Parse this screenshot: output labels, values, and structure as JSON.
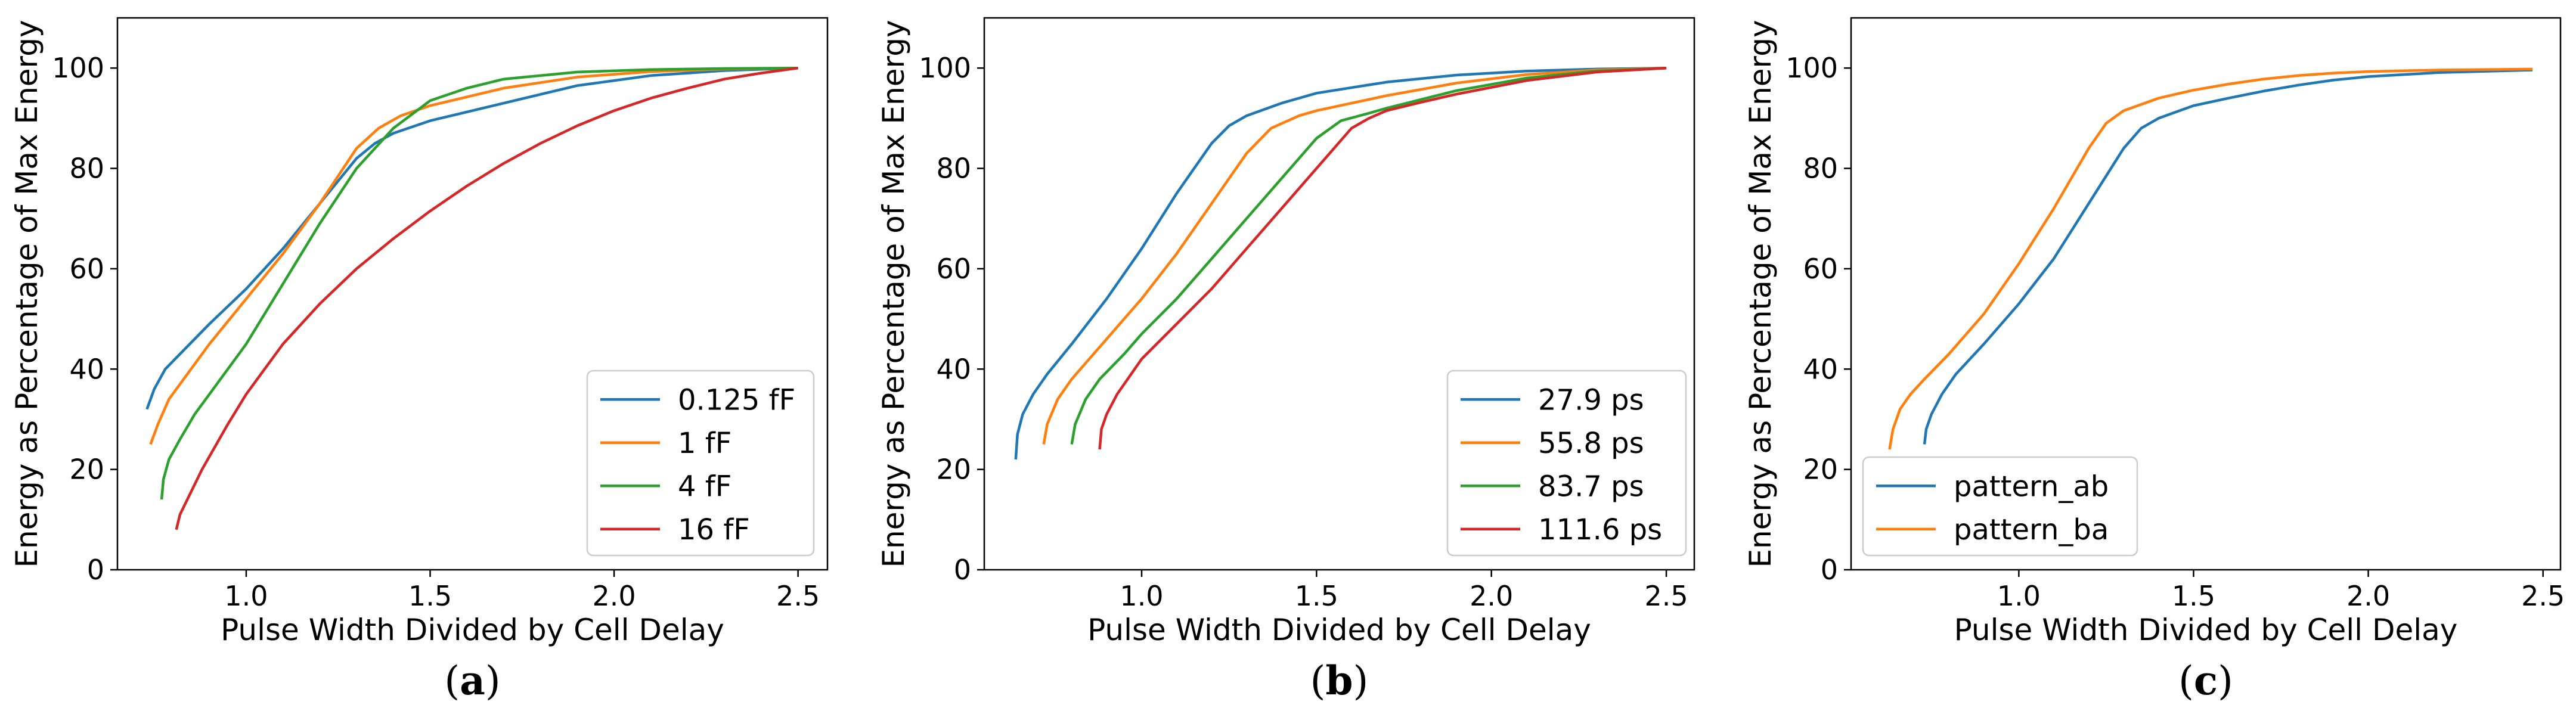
{
  "figure": {
    "panel_labels": [
      "(a)",
      "(b)",
      "(c)"
    ]
  },
  "chart_data": [
    {
      "type": "line",
      "panel_label": "(a)",
      "xlabel": "Pulse Width Divided by Cell Delay",
      "ylabel": "Energy as Percentage of Max Energy",
      "xlim": [
        0.65,
        2.58
      ],
      "ylim": [
        0,
        110
      ],
      "xticks": [
        1.0,
        1.5,
        2.0,
        2.5
      ],
      "xtick_labels": [
        "1.0",
        "1.5",
        "2.0",
        "2.5"
      ],
      "yticks": [
        0,
        20,
        40,
        60,
        80,
        100
      ],
      "ytick_labels": [
        "0",
        "20",
        "40",
        "60",
        "80",
        "100"
      ],
      "legend_position": "lower-right",
      "grid": false,
      "series": [
        {
          "name": "0.125 fF",
          "color": "#1f77b4",
          "x": [
            0.73,
            0.75,
            0.78,
            0.82,
            0.9,
            1.0,
            1.1,
            1.2,
            1.3,
            1.35,
            1.4,
            1.5,
            1.7,
            1.9,
            2.1,
            2.3,
            2.5
          ],
          "y": [
            32,
            36,
            40,
            43,
            49,
            56,
            64,
            73,
            82,
            85,
            87,
            89.5,
            93,
            96.5,
            98.5,
            99.5,
            100
          ]
        },
        {
          "name": "1 fF",
          "color": "#ff7f0e",
          "x": [
            0.74,
            0.76,
            0.79,
            0.83,
            0.9,
            1.0,
            1.1,
            1.2,
            1.3,
            1.36,
            1.42,
            1.5,
            1.7,
            1.9,
            2.1,
            2.3,
            2.5
          ],
          "y": [
            25,
            29,
            34,
            38,
            45,
            54,
            63,
            73,
            84,
            88,
            90.5,
            92.5,
            96,
            98.2,
            99.3,
            99.8,
            100
          ]
        },
        {
          "name": "4 fF",
          "color": "#2ca02c",
          "x": [
            0.77,
            0.775,
            0.79,
            0.82,
            0.86,
            0.9,
            1.0,
            1.1,
            1.2,
            1.3,
            1.4,
            1.5,
            1.6,
            1.7,
            1.9,
            2.1,
            2.3,
            2.5
          ],
          "y": [
            14,
            18,
            22,
            26,
            31,
            35,
            45,
            57,
            69,
            80,
            88,
            93.5,
            96,
            97.8,
            99.2,
            99.7,
            99.9,
            100
          ]
        },
        {
          "name": "16 fF",
          "color": "#d62728",
          "x": [
            0.81,
            0.82,
            0.84,
            0.88,
            0.95,
            1.0,
            1.1,
            1.2,
            1.3,
            1.4,
            1.5,
            1.6,
            1.7,
            1.8,
            1.9,
            2.0,
            2.1,
            2.2,
            2.3,
            2.4,
            2.5
          ],
          "y": [
            8,
            11,
            14,
            20,
            29,
            35,
            45,
            53,
            60,
            66,
            71.5,
            76.5,
            81,
            85,
            88.5,
            91.5,
            94,
            96,
            97.8,
            99,
            100
          ]
        }
      ]
    },
    {
      "type": "line",
      "panel_label": "(b)",
      "xlabel": "Pulse Width Divided by Cell Delay",
      "ylabel": "Energy as Percentage of Max Energy",
      "xlim": [
        0.55,
        2.58
      ],
      "ylim": [
        0,
        110
      ],
      "xticks": [
        1.0,
        1.5,
        2.0,
        2.5
      ],
      "xtick_labels": [
        "1.0",
        "1.5",
        "2.0",
        "2.5"
      ],
      "yticks": [
        0,
        20,
        40,
        60,
        80,
        100
      ],
      "ytick_labels": [
        "0",
        "20",
        "40",
        "60",
        "80",
        "100"
      ],
      "legend_position": "lower-right",
      "grid": false,
      "series": [
        {
          "name": "27.9 ps",
          "color": "#1f77b4",
          "x": [
            0.64,
            0.645,
            0.66,
            0.69,
            0.73,
            0.8,
            0.9,
            1.0,
            1.1,
            1.2,
            1.25,
            1.3,
            1.4,
            1.5,
            1.7,
            1.9,
            2.1,
            2.3,
            2.5
          ],
          "y": [
            22,
            27,
            31,
            35,
            39,
            45,
            54,
            64,
            75,
            85,
            88.5,
            90.5,
            93,
            95,
            97.2,
            98.6,
            99.4,
            99.8,
            100
          ]
        },
        {
          "name": "55.8 ps",
          "color": "#ff7f0e",
          "x": [
            0.72,
            0.73,
            0.76,
            0.8,
            0.9,
            1.0,
            1.1,
            1.2,
            1.3,
            1.37,
            1.45,
            1.5,
            1.7,
            1.9,
            2.1,
            2.3,
            2.5
          ],
          "y": [
            25,
            29,
            34,
            38,
            46,
            54,
            63,
            73,
            83,
            88,
            90.5,
            91.5,
            94.5,
            97,
            98.7,
            99.6,
            100
          ]
        },
        {
          "name": "83.7 ps",
          "color": "#2ca02c",
          "x": [
            0.8,
            0.81,
            0.84,
            0.88,
            0.95,
            1.0,
            1.1,
            1.2,
            1.3,
            1.4,
            1.5,
            1.57,
            1.65,
            1.7,
            1.9,
            2.1,
            2.3,
            2.5
          ],
          "y": [
            25,
            29,
            34,
            38,
            43,
            47,
            54,
            62,
            70,
            78,
            86,
            89.5,
            91,
            92,
            95.5,
            98,
            99.4,
            100
          ]
        },
        {
          "name": "111.6 ps",
          "color": "#d62728",
          "x": [
            0.88,
            0.885,
            0.9,
            0.93,
            0.97,
            1.0,
            1.1,
            1.2,
            1.3,
            1.4,
            1.5,
            1.6,
            1.65,
            1.7,
            1.8,
            1.9,
            2.1,
            2.3,
            2.5
          ],
          "y": [
            24,
            28,
            31,
            35,
            39,
            42,
            49,
            56,
            64,
            72,
            80,
            88,
            90,
            91.5,
            93.2,
            94.8,
            97.5,
            99.2,
            100
          ]
        }
      ]
    },
    {
      "type": "line",
      "panel_label": "(c)",
      "xlabel": "Pulse Width Divided by Cell Delay",
      "ylabel": "Energy as Percentage of Max Energy",
      "xlim": [
        0.52,
        2.55
      ],
      "ylim": [
        0,
        110
      ],
      "xticks": [
        1.0,
        1.5,
        2.0,
        2.5
      ],
      "xtick_labels": [
        "1.0",
        "1.5",
        "2.0",
        "2.5"
      ],
      "yticks": [
        0,
        20,
        40,
        60,
        80,
        100
      ],
      "ytick_labels": [
        "0",
        "20",
        "40",
        "60",
        "80",
        "100"
      ],
      "legend_position": "lower-left",
      "grid": false,
      "series": [
        {
          "name": "pattern_ab",
          "color": "#1f77b4",
          "x": [
            0.73,
            0.735,
            0.75,
            0.78,
            0.82,
            0.9,
            1.0,
            1.1,
            1.2,
            1.3,
            1.35,
            1.4,
            1.5,
            1.6,
            1.7,
            1.8,
            1.9,
            2.0,
            2.2,
            2.47
          ],
          "y": [
            25,
            28,
            31,
            35,
            39,
            45,
            53,
            62,
            73,
            84,
            88,
            90,
            92.5,
            94,
            95.4,
            96.6,
            97.6,
            98.3,
            99.1,
            99.6
          ]
        },
        {
          "name": "pattern_ba",
          "color": "#ff7f0e",
          "x": [
            0.63,
            0.64,
            0.66,
            0.69,
            0.73,
            0.8,
            0.9,
            1.0,
            1.1,
            1.2,
            1.25,
            1.3,
            1.4,
            1.5,
            1.6,
            1.7,
            1.8,
            1.9,
            2.0,
            2.2,
            2.47
          ],
          "y": [
            24,
            28,
            32,
            35,
            38,
            43,
            51,
            61,
            72,
            84,
            89,
            91.5,
            94,
            95.6,
            96.8,
            97.8,
            98.5,
            99,
            99.3,
            99.6,
            99.8
          ]
        }
      ]
    }
  ]
}
